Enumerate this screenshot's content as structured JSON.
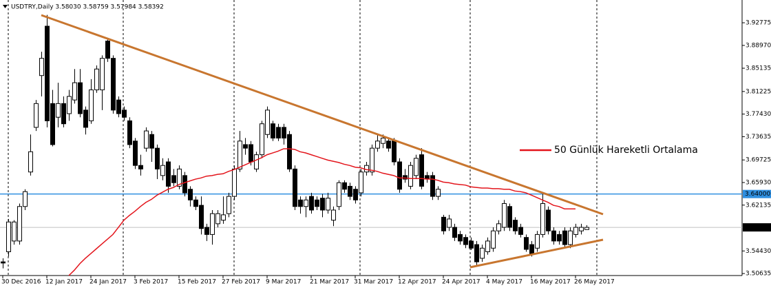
{
  "chart_data": {
    "type": "candlestick",
    "title": "USDTRY,Daily 3.58030 3.58759 3.57984 3.58392",
    "categories": [
      "30 Dec 2016",
      null,
      null,
      null,
      null,
      null,
      null,
      null,
      "12 Jan 2017",
      null,
      null,
      null,
      null,
      null,
      null,
      null,
      "24 Jan 2017",
      null,
      null,
      null,
      null,
      null,
      null,
      null,
      "3 Feb 2017",
      null,
      null,
      null,
      null,
      null,
      null,
      null,
      "15 Feb 2017",
      null,
      null,
      null,
      null,
      null,
      null,
      null,
      "27 Feb 2017",
      null,
      null,
      null,
      null,
      null,
      null,
      null,
      "9 Mar 2017",
      null,
      null,
      null,
      null,
      null,
      null,
      null,
      "21 Mar 2017",
      null,
      null,
      null,
      null,
      null,
      null,
      null,
      "31 Mar 2017",
      null,
      null,
      null,
      null,
      null,
      null,
      null,
      "12 Apr 2017",
      null,
      null,
      null,
      null,
      null,
      null,
      null,
      "24 Apr 2017",
      null,
      null,
      null,
      null,
      null,
      null,
      null,
      "4 May 2017",
      null,
      null,
      null,
      null,
      null,
      null,
      null,
      "16 May 2017",
      null,
      null,
      null,
      null,
      null,
      null,
      null,
      "26 May 2017",
      null,
      null
    ],
    "open": [
      3.526,
      3.543,
      3.561,
      3.561,
      3.619,
      3.677,
      3.752,
      3.839,
      3.922,
      3.792,
      3.769,
      3.792,
      3.775,
      3.798,
      3.827,
      3.781,
      3.763,
      3.815,
      3.815,
      3.897,
      3.868,
      3.798,
      3.781,
      3.763,
      3.729,
      3.688,
      3.717,
      3.74,
      3.717,
      3.671,
      3.694,
      3.671,
      3.653,
      3.671,
      3.648,
      3.63,
      3.621,
      3.584,
      3.572,
      3.59,
      3.596,
      3.607,
      3.636,
      3.682,
      3.723,
      3.723,
      3.682,
      3.706,
      3.74,
      3.758,
      3.752,
      3.752,
      3.74,
      3.682,
      3.63,
      3.619,
      3.636,
      3.63,
      3.633,
      3.613,
      3.596,
      3.619,
      3.659,
      3.653,
      3.648,
      3.642,
      3.677,
      3.677,
      3.717,
      3.725,
      3.729,
      3.729,
      3.694,
      3.671,
      3.653,
      3.671,
      3.706,
      3.671,
      3.671,
      3.636,
      3.601,
      3.584,
      3.584,
      3.572,
      3.567,
      3.561,
      3.555,
      3.532,
      3.543,
      3.549,
      3.578,
      3.584,
      3.619,
      3.596,
      3.584,
      3.567,
      3.555,
      3.549,
      3.572,
      3.613,
      3.578,
      3.572,
      3.578,
      3.555,
      3.572,
      3.578,
      3.5803
    ],
    "high": [
      3.532,
      3.598,
      3.596,
      3.624,
      3.648,
      3.74,
      3.798,
      3.879,
      3.941,
      3.815,
      3.827,
      3.804,
      3.815,
      3.85,
      3.85,
      3.787,
      3.833,
      3.856,
      3.873,
      3.902,
      3.873,
      3.804,
      3.787,
      3.769,
      3.734,
      3.706,
      3.752,
      3.746,
      3.723,
      3.7,
      3.7,
      3.682,
      3.688,
      3.677,
      3.653,
      3.636,
      3.636,
      3.59,
      3.613,
      3.613,
      3.636,
      3.642,
      3.688,
      3.746,
      3.734,
      3.729,
      3.711,
      3.763,
      3.787,
      3.763,
      3.758,
      3.758,
      3.746,
      3.688,
      3.636,
      3.636,
      3.642,
      3.636,
      3.64,
      3.642,
      3.619,
      3.663,
      3.663,
      3.659,
      3.653,
      3.682,
      3.694,
      3.723,
      3.74,
      3.74,
      3.734,
      3.734,
      3.7,
      3.682,
      3.694,
      3.706,
      3.717,
      3.677,
      3.677,
      3.653,
      3.605,
      3.605,
      3.59,
      3.578,
      3.572,
      3.567,
      3.561,
      3.555,
      3.567,
      3.584,
      3.596,
      3.63,
      3.624,
      3.601,
      3.59,
      3.572,
      3.561,
      3.578,
      3.64,
      3.619,
      3.584,
      3.578,
      3.584,
      3.584,
      3.59,
      3.59,
      3.58759
    ],
    "low": [
      3.515,
      3.535,
      3.555,
      3.555,
      3.613,
      3.671,
      3.746,
      3.804,
      3.752,
      3.72,
      3.752,
      3.752,
      3.763,
      3.792,
      3.769,
      3.74,
      3.758,
      3.81,
      3.781,
      3.862,
      3.775,
      3.769,
      3.763,
      3.717,
      3.682,
      3.671,
      3.711,
      3.694,
      3.665,
      3.663,
      3.642,
      3.653,
      3.648,
      3.636,
      3.619,
      3.613,
      3.572,
      3.561,
      3.555,
      3.584,
      3.59,
      3.601,
      3.63,
      3.677,
      3.706,
      3.688,
      3.677,
      3.7,
      3.734,
      3.729,
      3.729,
      3.723,
      3.677,
      3.613,
      3.607,
      3.601,
      3.607,
      3.613,
      3.601,
      3.607,
      3.586,
      3.613,
      3.642,
      3.63,
      3.624,
      3.636,
      3.671,
      3.671,
      3.711,
      3.717,
      3.711,
      3.688,
      3.642,
      3.659,
      3.648,
      3.665,
      3.648,
      3.659,
      3.63,
      3.63,
      3.572,
      3.578,
      3.561,
      3.555,
      3.549,
      3.546,
      3.52,
      3.526,
      3.538,
      3.543,
      3.572,
      3.578,
      3.578,
      3.572,
      3.567,
      3.543,
      3.535,
      3.543,
      3.567,
      3.572,
      3.555,
      3.555,
      3.549,
      3.549,
      3.567,
      3.572,
      3.57984
    ],
    "close": [
      3.524,
      3.593,
      3.593,
      3.619,
      3.644,
      3.711,
      3.792,
      3.868,
      3.763,
      3.723,
      3.792,
      3.758,
      3.804,
      3.827,
      3.775,
      3.752,
      3.815,
      3.85,
      3.868,
      3.868,
      3.781,
      3.775,
      3.769,
      3.723,
      3.688,
      3.682,
      3.746,
      3.717,
      3.682,
      3.688,
      3.653,
      3.659,
      3.682,
      3.642,
      3.63,
      3.619,
      3.582,
      3.572,
      3.607,
      3.607,
      3.605,
      3.636,
      3.682,
      3.729,
      3.717,
      3.694,
      3.706,
      3.758,
      3.781,
      3.734,
      3.734,
      3.734,
      3.682,
      3.619,
      3.619,
      3.63,
      3.613,
      3.619,
      3.613,
      3.633,
      3.613,
      3.659,
      3.648,
      3.636,
      3.63,
      3.677,
      3.688,
      3.717,
      3.729,
      3.734,
      3.717,
      3.694,
      3.648,
      3.665,
      3.688,
      3.7,
      3.653,
      3.665,
      3.636,
      3.648,
      3.578,
      3.598,
      3.567,
      3.561,
      3.555,
      3.549,
      3.526,
      3.549,
      3.561,
      3.578,
      3.59,
      3.624,
      3.584,
      3.578,
      3.572,
      3.547,
      3.54,
      3.572,
      3.624,
      3.578,
      3.561,
      3.561,
      3.555,
      3.578,
      3.584,
      3.584,
      3.58392
    ],
    "candle_colors": {
      "up": "#ffffff",
      "down": "#000000"
    },
    "series": [
      {
        "name": "50 Günlük Hareketli Ortalama",
        "color": "#e3141b",
        "values": [
          null,
          null,
          null,
          null,
          null,
          null,
          null,
          null,
          null,
          null,
          null,
          null,
          3.503,
          3.512,
          3.523,
          3.532,
          3.54,
          3.548,
          3.556,
          3.564,
          3.572,
          3.584,
          3.596,
          3.604,
          3.611,
          3.619,
          3.626,
          3.631,
          3.638,
          3.643,
          3.648,
          3.651,
          3.656,
          3.659,
          3.662,
          3.665,
          3.667,
          3.67,
          3.671,
          3.673,
          3.674,
          3.678,
          3.681,
          3.685,
          3.689,
          3.693,
          3.697,
          3.701,
          3.706,
          3.709,
          3.712,
          3.716,
          3.716,
          3.715,
          3.711,
          3.709,
          3.706,
          3.703,
          3.7,
          3.697,
          3.695,
          3.693,
          3.69,
          3.688,
          3.685,
          3.684,
          3.681,
          3.68,
          3.678,
          3.675,
          3.673,
          3.671,
          3.667,
          3.667,
          3.666,
          3.666,
          3.666,
          3.665,
          3.665,
          3.663,
          3.66,
          3.659,
          3.657,
          3.656,
          3.655,
          3.652,
          3.651,
          3.65,
          3.65,
          3.649,
          3.649,
          3.648,
          3.648,
          3.645,
          3.644,
          3.642,
          3.638,
          3.634,
          3.63,
          3.626,
          3.621,
          3.619,
          3.615,
          3.615,
          3.615,
          null,
          null
        ]
      }
    ],
    "ylim": [
      3.503,
      3.966
    ],
    "yticks": [
      3.92775,
      {
        "value": 3.8897,
        "label": "3.88970"
      },
      3.85135,
      3.81225,
      {
        "value": 3.7743,
        "label": "3.77430"
      },
      3.73635,
      3.69725,
      {
        "value": 3.6593,
        "label": "3.65930"
      },
      3.62135,
      {
        "value": 3.5443,
        "label": "3.54430"
      },
      3.50635
    ],
    "hline": {
      "value": 3.64,
      "label": "3.64000",
      "color": "#2f8fe0"
    },
    "price_line": {
      "value": 3.58392,
      "label": "3.58392",
      "color": "#c0c0c0"
    },
    "grid": false
  }
}
